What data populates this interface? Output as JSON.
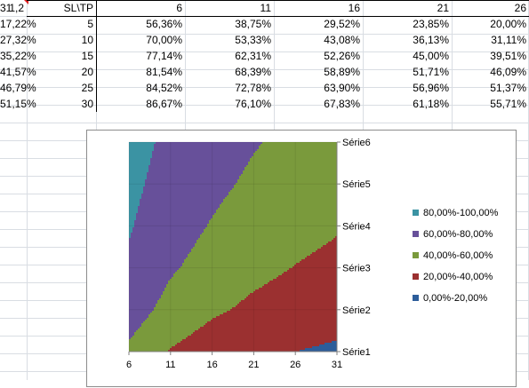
{
  "sheet": {
    "cell_a1": "1,2",
    "corner_header": "SL\\TP",
    "column_headers": [
      "6",
      "11",
      "16",
      "21",
      "26",
      "31"
    ],
    "rows": [
      {
        "label": "5",
        "values": [
          "56,36%",
          "38,75%",
          "29,52%",
          "23,85%",
          "20,00%",
          "17,22%"
        ]
      },
      {
        "label": "10",
        "values": [
          "70,00%",
          "53,33%",
          "43,08%",
          "36,13%",
          "31,11%",
          "27,32%"
        ]
      },
      {
        "label": "15",
        "values": [
          "77,14%",
          "62,31%",
          "52,26%",
          "45,00%",
          "39,51%",
          "35,22%"
        ]
      },
      {
        "label": "20",
        "values": [
          "81,54%",
          "68,39%",
          "58,89%",
          "51,71%",
          "46,09%",
          "41,57%"
        ]
      },
      {
        "label": "25",
        "values": [
          "84,52%",
          "72,78%",
          "63,90%",
          "56,96%",
          "51,37%",
          "46,79%"
        ]
      },
      {
        "label": "30",
        "values": [
          "86,67%",
          "76,10%",
          "67,83%",
          "61,18%",
          "55,71%",
          "51,15%"
        ]
      }
    ]
  },
  "chart_data": {
    "type": "contour-area",
    "categories": [
      "6",
      "11",
      "16",
      "21",
      "26",
      "31"
    ],
    "series_axis": [
      "Série1",
      "Série2",
      "Série3",
      "Série4",
      "Série5",
      "Série6"
    ],
    "series": [
      {
        "name": "Série1",
        "values": [
          56.36,
          38.75,
          29.52,
          23.85,
          20.0,
          17.22
        ]
      },
      {
        "name": "Série2",
        "values": [
          70.0,
          53.33,
          43.08,
          36.13,
          31.11,
          27.32
        ]
      },
      {
        "name": "Série3",
        "values": [
          77.14,
          62.31,
          52.26,
          45.0,
          39.51,
          35.22
        ]
      },
      {
        "name": "Série4",
        "values": [
          81.54,
          68.39,
          58.89,
          51.71,
          46.09,
          41.57
        ]
      },
      {
        "name": "Série5",
        "values": [
          84.52,
          72.78,
          63.9,
          56.96,
          51.37,
          46.79
        ]
      },
      {
        "name": "Série6",
        "values": [
          86.67,
          76.1,
          67.83,
          61.18,
          55.71,
          51.15
        ]
      }
    ],
    "bands": [
      {
        "label": "80,00%-100,00%",
        "min": 80,
        "max": 100,
        "color": "#3b93a3"
      },
      {
        "label": "60,00%-80,00%",
        "min": 60,
        "max": 80,
        "color": "#67509a"
      },
      {
        "label": "40,00%-60,00%",
        "min": 40,
        "max": 60,
        "color": "#7a9a3c"
      },
      {
        "label": "20,00%-40,00%",
        "min": 20,
        "max": 40,
        "color": "#9b3030"
      },
      {
        "label": "0,00%-20,00%",
        "min": 0,
        "max": 20,
        "color": "#2c5d9a"
      }
    ],
    "legend_position": "right",
    "grid": true
  }
}
